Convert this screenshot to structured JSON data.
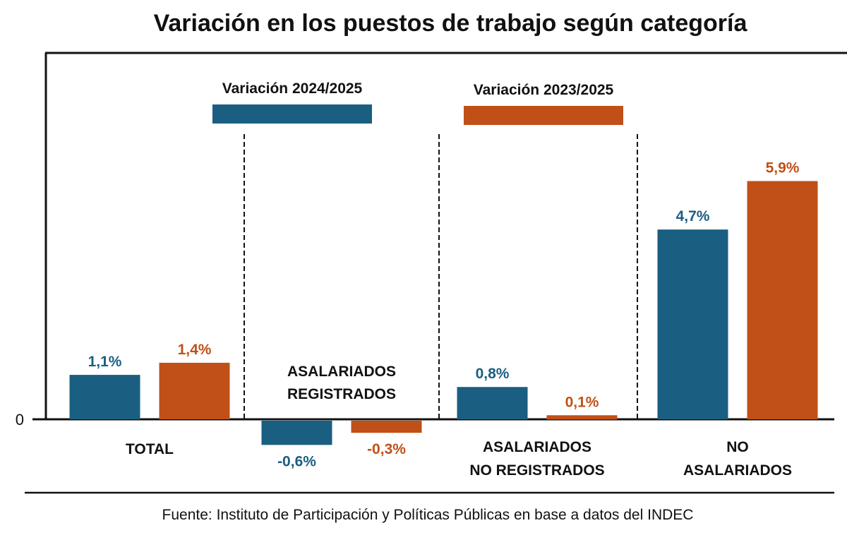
{
  "chart_data": {
    "type": "bar",
    "title": "Variación en los puestos de trabajo según categoría",
    "xlabel": "",
    "ylabel": "",
    "ylim": [
      -1.0,
      7.0
    ],
    "y_ticks": [
      "0"
    ],
    "grid": false,
    "legend_position": "top-center",
    "categories": [
      {
        "label_lines": [
          "TOTAL"
        ],
        "label_position": "below"
      },
      {
        "label_lines": [
          "ASALARIADOS",
          "REGISTRADOS"
        ],
        "label_position": "above"
      },
      {
        "label_lines": [
          "ASALARIADOS",
          "NO REGISTRADOS"
        ],
        "label_position": "below"
      },
      {
        "label_lines": [
          "NO",
          "ASALARIADOS"
        ],
        "label_position": "below"
      }
    ],
    "series": [
      {
        "name": "Variación 2024/2025",
        "color": "#1a5e82",
        "values": [
          1.1,
          -0.6,
          0.8,
          4.7
        ],
        "labels": [
          "1,1%",
          "-0,6%",
          "0,8%",
          "4,7%"
        ]
      },
      {
        "name": "Variación 2023/2025",
        "color": "#c05017",
        "values": [
          1.4,
          -0.3,
          0.1,
          5.9
        ],
        "labels": [
          "1,4%",
          "-0,3%",
          "0,1%",
          "5,9%"
        ]
      }
    ],
    "source": "Fuente: Instituto de Participación y Políticas Públicas en base a datos del INDEC"
  }
}
